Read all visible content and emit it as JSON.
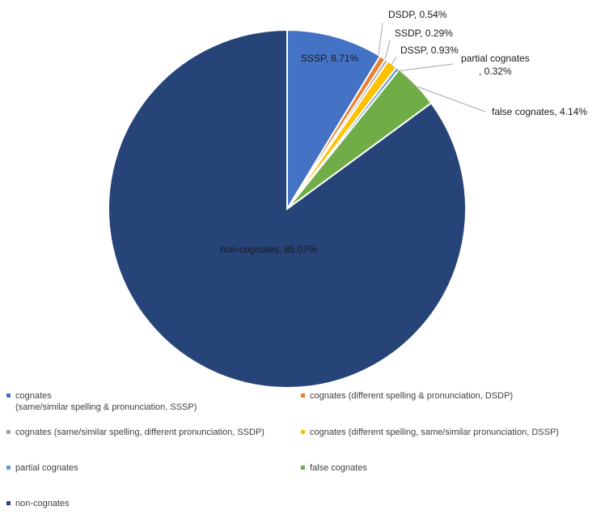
{
  "chart_data": {
    "type": "pie",
    "title": "",
    "slices": [
      {
        "label": "SSSP, 8.71%",
        "value": 8.71,
        "color": "#4472C4"
      },
      {
        "label": "DSDP, 0.54%",
        "value": 0.54,
        "color": "#ED7D31"
      },
      {
        "label": "SSDP, 0.29%",
        "value": 0.29,
        "color": "#A5A5A5"
      },
      {
        "label": "DSSP, 0.93%",
        "value": 0.93,
        "color": "#FFC000"
      },
      {
        "label": "partial cognates\n, 0.32%",
        "value": 0.32,
        "color": "#5B9BD5"
      },
      {
        "label": "false cognates, 4.14%",
        "value": 4.14,
        "color": "#70AD47"
      },
      {
        "label": "non-cognates, 85.07%",
        "value": 85.07,
        "color": "#264478"
      }
    ],
    "legend": [
      {
        "text": "cognates\n(same/similar spelling & pronunciation, SSSP)",
        "color": "#4472C4"
      },
      {
        "text": "cognates (different spelling & pronunciation, DSDP)",
        "color": "#ED7D31"
      },
      {
        "text": "cognates (same/similar spelling, different pronunciation, SSDP)",
        "color": "#A5A5A5"
      },
      {
        "text": "cognates (different spelling, same/similar pronunciation, DSSP)",
        "color": "#FFC000"
      },
      {
        "text": "partial cognates",
        "color": "#5B9BD5"
      },
      {
        "text": "false cognates",
        "color": "#70AD47"
      },
      {
        "text": "non-cognates",
        "color": "#264478"
      }
    ],
    "legend_position": "bottom"
  }
}
